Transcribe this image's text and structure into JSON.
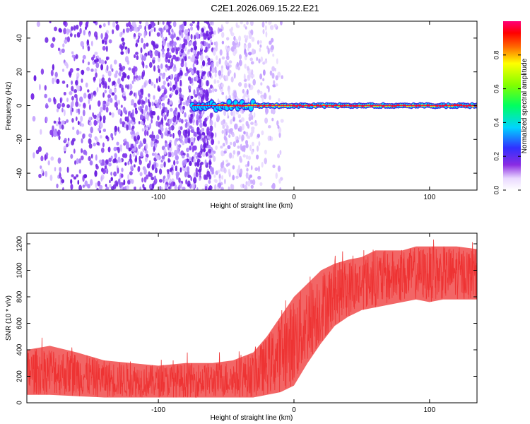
{
  "title": "C2E1.2026.069.15.22.E21",
  "chart_data": [
    {
      "type": "heatmap",
      "xlabel": "Height of straight line (km)",
      "ylabel": "Frequency (Hz)",
      "xlim": [
        -197,
        135
      ],
      "ylim": [
        -50,
        50
      ],
      "xticks": [
        -100,
        0,
        100
      ],
      "xtick_labels": [
        "-100",
        "0",
        "100"
      ],
      "yticks": [
        -40,
        -20,
        0,
        20,
        40
      ],
      "ytick_labels": [
        "-40",
        "-20",
        "0",
        "20",
        "40"
      ],
      "grid": false,
      "colorbar": {
        "label": "Normalized spectral amplitude",
        "range": [
          0,
          1
        ],
        "ticks": [
          0.0,
          0.2,
          0.4,
          0.6,
          0.8
        ],
        "tick_labels": [
          "0.0",
          "0.2",
          "0.4",
          "0.6",
          "0.8"
        ],
        "colormap": "rainbow (white-violet-blue-cyan-green-yellow-red-magenta)"
      },
      "features": [
        {
          "name": "noise",
          "x_range": [
            -197,
            -12
          ],
          "amplitude": 0.2
        },
        {
          "name": "carrier-trace",
          "frequency_hz": 0,
          "x_range": [
            -75,
            135
          ],
          "amplitude": 0.95
        }
      ]
    },
    {
      "type": "area",
      "xlabel": "Height of straight line (km)",
      "ylabel": "SNR (10 * v/v)",
      "xlim": [
        -197,
        135
      ],
      "ylim": [
        0,
        1280
      ],
      "xticks": [
        -100,
        0,
        100
      ],
      "xtick_labels": [
        "-100",
        "0",
        "100"
      ],
      "yticks": [
        0,
        200,
        400,
        600,
        800,
        1000,
        1200
      ],
      "ytick_labels": [
        "0",
        "200",
        "400",
        "600",
        "800",
        "1000",
        "1200"
      ],
      "grid": false,
      "color": "#ee3333",
      "envelope": {
        "x": [
          -197,
          -180,
          -160,
          -140,
          -120,
          -100,
          -80,
          -60,
          -45,
          -30,
          -20,
          -10,
          0,
          10,
          20,
          30,
          40,
          50,
          60,
          70,
          80,
          90,
          100,
          110,
          120,
          135
        ],
        "lower": [
          60,
          60,
          50,
          40,
          40,
          40,
          40,
          40,
          40,
          40,
          60,
          80,
          130,
          300,
          450,
          580,
          650,
          700,
          720,
          740,
          760,
          780,
          760,
          780,
          780,
          780
        ],
        "upper": [
          400,
          430,
          380,
          320,
          300,
          280,
          300,
          300,
          320,
          380,
          500,
          650,
          800,
          900,
          1000,
          1050,
          1080,
          1100,
          1150,
          1150,
          1150,
          1180,
          1180,
          1180,
          1180,
          1160
        ]
      }
    }
  ]
}
